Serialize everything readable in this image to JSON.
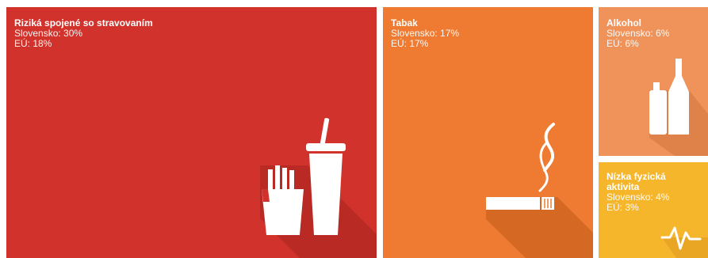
{
  "chart_data": {
    "type": "treemap",
    "series": [
      {
        "name": "Slovensko",
        "values": [
          30,
          17,
          6,
          4
        ]
      },
      {
        "name": "EÚ",
        "values": [
          18,
          17,
          6,
          3
        ]
      }
    ],
    "categories": [
      "Riziká spojené so stravovaním",
      "Tabak",
      "Alkohol",
      "Nízka fyzická aktivita"
    ],
    "tiles": [
      {
        "title": "Riziká spojené so stravovaním",
        "sk": "Slovensko: 30%",
        "eu": "EÚ: 18%",
        "sk_value": 30,
        "eu_value": 18,
        "color": "#d1322b",
        "icon": "fast-food-icon"
      },
      {
        "title": "Tabak",
        "sk": "Slovensko: 17%",
        "eu": "EÚ: 17%",
        "sk_value": 17,
        "eu_value": 17,
        "color": "#ee7b31",
        "icon": "cigarette-icon"
      },
      {
        "title": "Alkohol",
        "sk": "Slovensko: 6%",
        "eu": "EÚ: 6%",
        "sk_value": 6,
        "eu_value": 6,
        "color": "#f0935a",
        "icon": "bottles-icon"
      },
      {
        "title": "Nízka fyzická aktivita",
        "sk": "Slovensko: 4%",
        "eu": "EÚ: 3%",
        "sk_value": 4,
        "eu_value": 3,
        "color": "#f6b62c",
        "icon": "heartbeat-icon"
      }
    ]
  }
}
